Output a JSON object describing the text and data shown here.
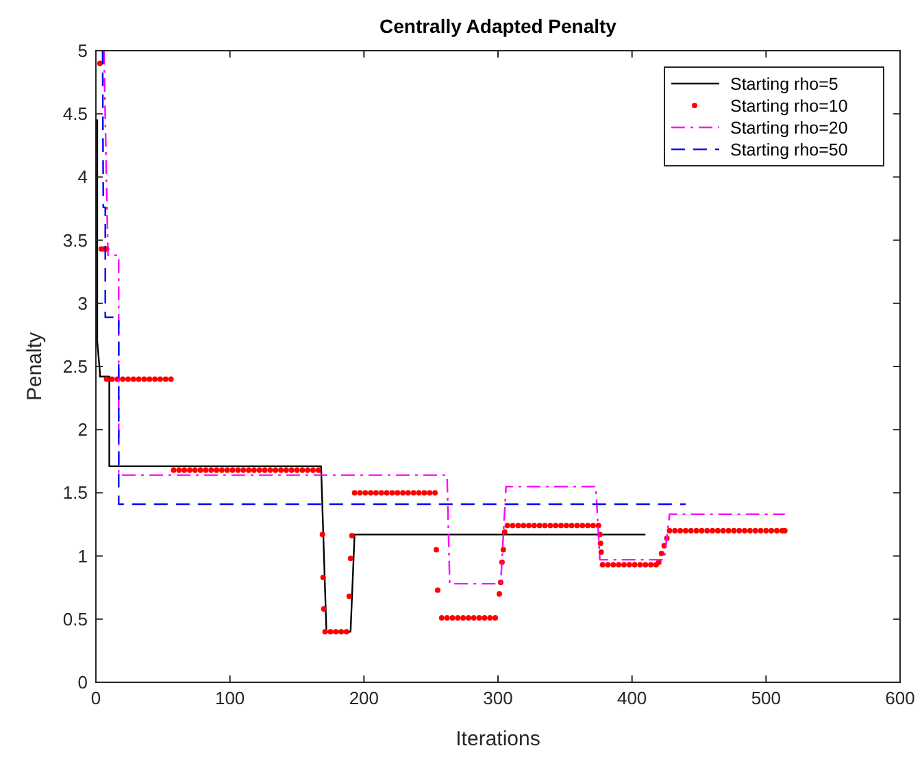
{
  "chart_data": {
    "type": "line",
    "title": "Centrally Adapted Penalty",
    "xlabel": "Iterations",
    "ylabel": "Penalty",
    "xlim": [
      0,
      600
    ],
    "xticks": [
      0,
      100,
      200,
      300,
      400,
      500,
      600
    ],
    "ylim": [
      0,
      5
    ],
    "yticks": [
      0,
      0.5,
      1,
      1.5,
      2,
      2.5,
      3,
      3.5,
      4,
      4.5,
      5
    ],
    "legend": "top right",
    "grid": false,
    "series": [
      {
        "name": "Starting rho=5",
        "color": "#000000",
        "line_style": "solid",
        "x": [
          0,
          1,
          1,
          3,
          3,
          10,
          10,
          168,
          172,
          190,
          193,
          410
        ],
        "values": [
          4.45,
          4.45,
          2.7,
          2.45,
          2.42,
          2.42,
          1.71,
          1.71,
          0.4,
          0.4,
          1.17,
          1.17
        ]
      },
      {
        "name": "Starting rho=10",
        "color": "#ff0000",
        "type": "scatter",
        "marker": "circle",
        "x": [
          3,
          4,
          6,
          8,
          8,
          12,
          16,
          20,
          24,
          28,
          32,
          36,
          40,
          44,
          48,
          52,
          56,
          58,
          62,
          66,
          70,
          74,
          78,
          82,
          86,
          90,
          94,
          98,
          102,
          106,
          110,
          114,
          118,
          122,
          126,
          130,
          134,
          138,
          142,
          146,
          150,
          154,
          158,
          162,
          166,
          169,
          169.5,
          170,
          171,
          175,
          179,
          183,
          187,
          189,
          190,
          191,
          193,
          197,
          201,
          205,
          209,
          213,
          217,
          221,
          225,
          229,
          233,
          237,
          241,
          245,
          249,
          253,
          254,
          255,
          258,
          262,
          266,
          270,
          274,
          278,
          282,
          286,
          290,
          294,
          298,
          301,
          302,
          303,
          304,
          305,
          307,
          311,
          315,
          319,
          323,
          327,
          331,
          335,
          339,
          343,
          347,
          351,
          355,
          359,
          363,
          367,
          371,
          375,
          376,
          376.5,
          377,
          378,
          382,
          386,
          390,
          394,
          398,
          402,
          406,
          410,
          414,
          418,
          420,
          422,
          424,
          426,
          428,
          432,
          436,
          440,
          444,
          448,
          452,
          456,
          460,
          464,
          468,
          472,
          476,
          480,
          484,
          488,
          492,
          496,
          500,
          504,
          508,
          512,
          514
        ],
        "values": [
          4.9,
          3.43,
          3.43,
          3.43,
          2.4,
          2.4,
          2.4,
          2.4,
          2.4,
          2.4,
          2.4,
          2.4,
          2.4,
          2.4,
          2.4,
          2.4,
          2.4,
          1.68,
          1.68,
          1.68,
          1.68,
          1.68,
          1.68,
          1.68,
          1.68,
          1.68,
          1.68,
          1.68,
          1.68,
          1.68,
          1.68,
          1.68,
          1.68,
          1.68,
          1.68,
          1.68,
          1.68,
          1.68,
          1.68,
          1.68,
          1.68,
          1.68,
          1.68,
          1.68,
          1.68,
          1.17,
          0.83,
          0.58,
          0.4,
          0.4,
          0.4,
          0.4,
          0.4,
          0.68,
          0.98,
          1.16,
          1.5,
          1.5,
          1.5,
          1.5,
          1.5,
          1.5,
          1.5,
          1.5,
          1.5,
          1.5,
          1.5,
          1.5,
          1.5,
          1.5,
          1.5,
          1.5,
          1.05,
          0.73,
          0.51,
          0.51,
          0.51,
          0.51,
          0.51,
          0.51,
          0.51,
          0.51,
          0.51,
          0.51,
          0.51,
          0.7,
          0.79,
          0.95,
          1.05,
          1.19,
          1.24,
          1.24,
          1.24,
          1.24,
          1.24,
          1.24,
          1.24,
          1.24,
          1.24,
          1.24,
          1.24,
          1.24,
          1.24,
          1.24,
          1.24,
          1.24,
          1.24,
          1.24,
          1.17,
          1.1,
          1.03,
          0.93,
          0.93,
          0.93,
          0.93,
          0.93,
          0.93,
          0.93,
          0.93,
          0.93,
          0.93,
          0.93,
          0.95,
          1.02,
          1.08,
          1.14,
          1.2,
          1.2,
          1.2,
          1.2,
          1.2,
          1.2,
          1.2,
          1.2,
          1.2,
          1.2,
          1.2,
          1.2,
          1.2,
          1.2,
          1.2,
          1.2,
          1.2,
          1.2,
          1.2,
          1.2,
          1.2,
          1.2,
          1.2
        ]
      },
      {
        "name": "Starting rho=20",
        "color": "#ff00ff",
        "line_style": "dashdot",
        "x": [
          6,
          9,
          17,
          17,
          262,
          264,
          302,
          306,
          373,
          376,
          424,
          428,
          514
        ],
        "values": [
          5,
          3.38,
          3.38,
          1.64,
          1.64,
          0.78,
          0.78,
          1.55,
          1.55,
          0.97,
          0.97,
          1.33,
          1.33
        ]
      },
      {
        "name": "Starting rho=50",
        "color": "#0000ff",
        "line_style": "dashed",
        "x": [
          5,
          5.5,
          7,
          7,
          17,
          17,
          440
        ],
        "values": [
          5,
          3.76,
          3.76,
          2.89,
          2.89,
          1.41,
          1.41
        ]
      }
    ]
  }
}
